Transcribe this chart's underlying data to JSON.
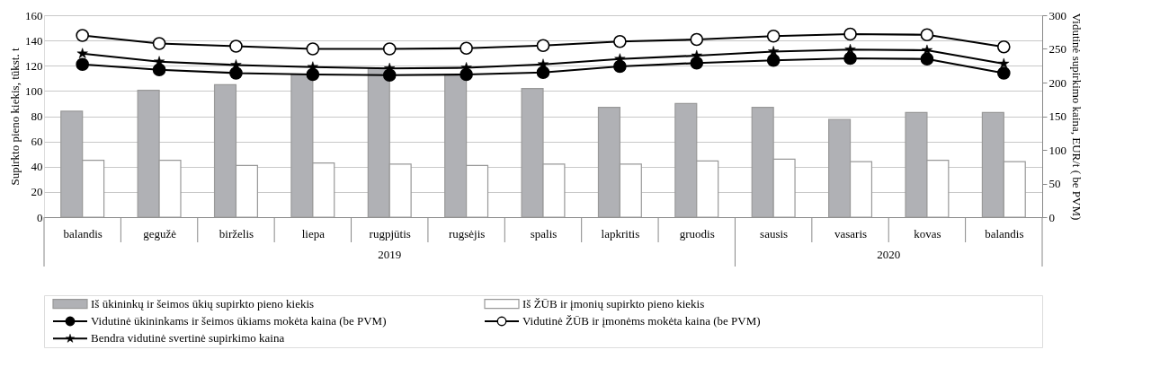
{
  "chart_data": {
    "type": "bar",
    "ylabel": "Supirkto pieno kiekis, tūkst. t",
    "y2label": "Vidutinė supirkimo kaina, EUR/t ( be PVM)",
    "categories": [
      "balandis",
      "gegužė",
      "birželis",
      "liepa",
      "rugpjūtis",
      "rugsėjis",
      "spalis",
      "lapkritis",
      "gruodis",
      "sausis",
      "vasaris",
      "kovas",
      "balandis"
    ],
    "series": [
      {
        "name": "Iš ūkininkų ir šeimos ūkių supirkto pieno kiekis",
        "color": "#b0b1b5",
        "values": [
          84,
          100.5,
          105,
          113,
          118,
          113,
          102,
          87,
          90,
          87,
          77.5,
          83,
          83
        ]
      },
      {
        "name": "Iš ŽŪB ir įmonių supirkto pieno kiekis",
        "color": "#ffffff",
        "values": [
          45,
          45,
          41,
          43,
          42,
          41,
          42,
          42,
          44.5,
          46,
          44,
          45,
          44
        ]
      },
      {
        "name": "Vidutinė ūkininkams ir šeimos ūkiams mokėta kaina (be PVM)",
        "type": "line",
        "axis": "y2",
        "color": "#000000",
        "marker": "circle",
        "values": [
          227,
          219,
          214,
          212,
          211,
          212,
          215,
          224,
          229,
          233,
          236,
          235,
          214
        ]
      },
      {
        "name": "Vidutinė ŽŪB ir įmonėms mokėta kaina (be PVM)",
        "type": "line",
        "axis": "y2",
        "color": "#000000",
        "marker": "circle",
        "values": [
          270,
          258,
          254,
          250,
          250,
          251,
          255,
          261,
          264,
          269,
          272,
          271,
          253
        ]
      },
      {
        "name": "Bendra vidutinė svertinė supirkimo kaina",
        "type": "line",
        "axis": "y2",
        "color": "#000000",
        "marker": "star",
        "values": [
          243,
          231,
          226,
          223,
          221,
          222,
          227,
          235,
          240,
          246,
          249,
          248,
          228
        ]
      }
    ],
    "ylim": [
      0,
      160
    ],
    "yticks": [
      0,
      20,
      40,
      60,
      80,
      100,
      120,
      140,
      160
    ],
    "y2lim": [
      0,
      300
    ],
    "y2ticks": [
      0,
      50,
      100,
      150,
      200,
      250,
      300
    ],
    "annotations": [
      "2019",
      "2020"
    ],
    "grid": "y",
    "legend": "bottom",
    "line_style": "solid"
  }
}
